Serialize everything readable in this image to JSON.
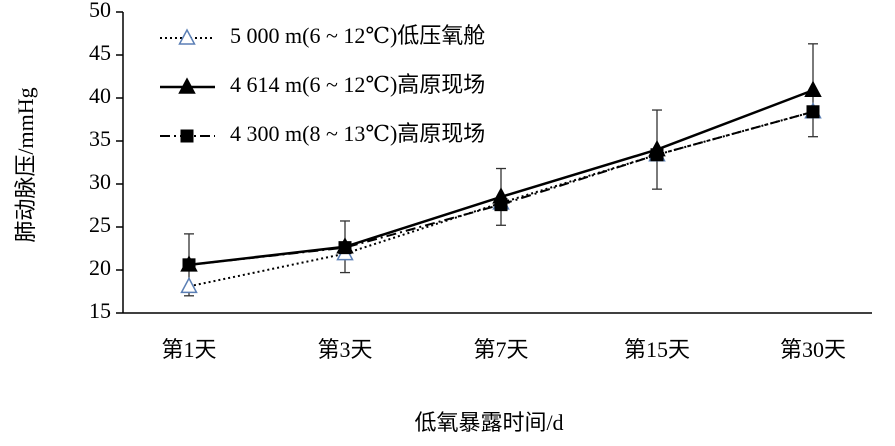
{
  "chart_data": {
    "type": "line",
    "ylabel": "肺动脉压/mmHg",
    "xlabel": "低氧暴露时间/d",
    "categories": [
      "第1天",
      "第3天",
      "第7天",
      "第15天",
      "第30天"
    ],
    "ylim": [
      15,
      50
    ],
    "yticks": [
      15,
      20,
      25,
      30,
      35,
      40,
      45,
      50
    ],
    "legend": "upper-left",
    "series": [
      {
        "name": "5 000 m(6 ~ 12℃)低压氧舱",
        "color": "#000000",
        "marker_color": "#5b7fb5",
        "marker": "triangle-open",
        "dash": "dotted",
        "values": [
          18.1,
          21.9,
          27.8,
          33.4,
          38.4
        ]
      },
      {
        "name": "4 614 m(6 ~ 12℃)高原现场",
        "color": "#000000",
        "marker_color": "#000000",
        "marker": "triangle",
        "dash": "solid",
        "values": [
          20.6,
          22.7,
          28.5,
          34,
          40.9
        ],
        "errors": [
          3.6,
          3,
          3.3,
          4.6,
          5.4
        ]
      },
      {
        "name": "4 300 m(8 ~ 13℃)高原现场",
        "color": "#000000",
        "marker_color": "#000000",
        "marker": "square",
        "dash": "dashdot",
        "values": [
          20.6,
          22.6,
          27.6,
          33.4,
          38.4
        ]
      }
    ]
  }
}
